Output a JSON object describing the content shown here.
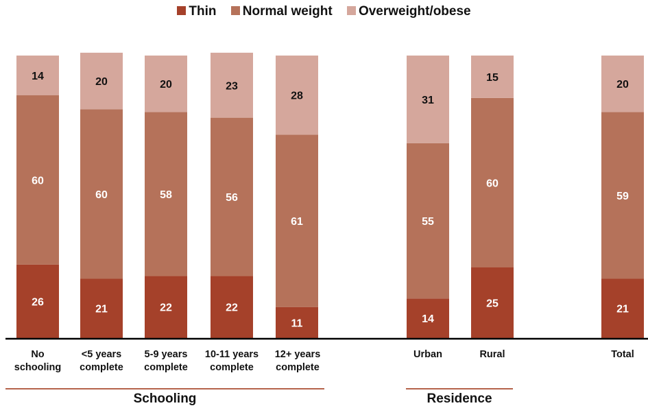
{
  "legend": {
    "thin": "Thin",
    "normal": "Normal weight",
    "over": "Overweight/obese"
  },
  "colors": {
    "thin": "#a5412a",
    "normal": "#b5725a",
    "over": "#d5a79c",
    "group_line": "#b5624a"
  },
  "groups": {
    "schooling": "Schooling",
    "residence": "Residence"
  },
  "categories": {
    "no_schooling": "No\nschooling",
    "lt5": "<5 years\ncomplete",
    "y5_9": "5-9 years\ncomplete",
    "y10_11": "10-11 years\ncomplete",
    "y12": "12+ years\ncomplete",
    "urban": "Urban",
    "rural": "Rural",
    "total": "Total"
  },
  "chart_data": {
    "type": "bar",
    "stacked": true,
    "orientation": "vertical",
    "categories": [
      "No schooling",
      "<5 years complete",
      "5-9 years complete",
      "10-11 years complete",
      "12+ years complete",
      "Urban",
      "Rural",
      "Total"
    ],
    "series": [
      {
        "name": "Thin",
        "values": [
          26,
          21,
          22,
          22,
          11,
          14,
          25,
          21
        ]
      },
      {
        "name": "Normal weight",
        "values": [
          60,
          60,
          58,
          56,
          61,
          55,
          60,
          59
        ]
      },
      {
        "name": "Overweight/obese",
        "values": [
          14,
          20,
          20,
          23,
          28,
          31,
          15,
          20
        ]
      }
    ],
    "group_labels": [
      "Schooling",
      "Residence"
    ],
    "legend_position": "top",
    "grid": false,
    "data_labels": true
  }
}
